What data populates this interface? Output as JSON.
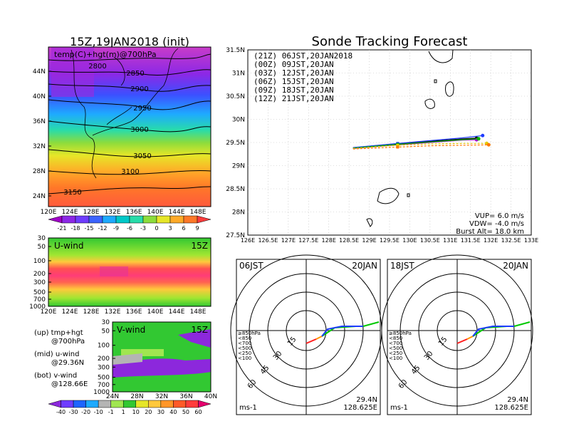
{
  "left": {
    "title": "15Z,19JAN2018 (init)",
    "map_label": "temp(C)+hgt(m)@700hPa",
    "lat_ticks": [
      "44N",
      "40N",
      "36N",
      "32N",
      "28N",
      "24N"
    ],
    "lon_ticks": [
      "120E",
      "124E",
      "128E",
      "132E",
      "136E",
      "140E",
      "144E",
      "148E"
    ],
    "contours": [
      "2800",
      "2850",
      "2900",
      "2950",
      "3000",
      "3050",
      "3100",
      "3150"
    ],
    "temp_colorbar": [
      "-21",
      "-18",
      "-15",
      "-12",
      "-9",
      "-6",
      "-3",
      "0",
      "3",
      "6",
      "9"
    ],
    "uwind": {
      "label": "U-wind",
      "time": "15Z",
      "p_ticks": [
        "30",
        "50",
        "100",
        "200",
        "300",
        "500",
        "700",
        "1000"
      ],
      "lon_ticks": [
        "120E",
        "124E",
        "128E",
        "132E",
        "136E",
        "140E",
        "144E",
        "148E"
      ]
    },
    "vwind": {
      "label": "V-wind",
      "time": "15Z",
      "p_ticks": [
        "30",
        "50",
        "100",
        "200",
        "300",
        "500",
        "700",
        "1000"
      ],
      "lat_ticks": [
        "24N",
        "28N",
        "32N",
        "36N",
        "40N"
      ]
    },
    "notes": [
      [
        "(up) tmp+hgt",
        "@700hPa"
      ],
      [
        "(mid) u-wind",
        "@29.36N"
      ],
      [
        "(bot) v-wind",
        "@128.66E"
      ]
    ],
    "wind_colorbar": [
      "-40",
      "-30",
      "-20",
      "-10",
      "-1",
      "1",
      "10",
      "20",
      "30",
      "40",
      "50",
      "60"
    ]
  },
  "right": {
    "title": "Sonde Tracking Forecast",
    "legend": [
      {
        "label": "(21Z) 06JST,20JAN2018",
        "color": "#000000"
      },
      {
        "label": "(00Z) 09JST,20JAN",
        "color": "#a000c8"
      },
      {
        "label": "(03Z) 12JST,20JAN",
        "color": "#1e3cff"
      },
      {
        "label": "(06Z) 15JST,20JAN",
        "color": "#00b400"
      },
      {
        "label": "(09Z) 18JST,20JAN",
        "color": "#e6c800"
      },
      {
        "label": "(12Z) 21JST,20JAN",
        "color": "#ff7800"
      }
    ],
    "lat_ticks": [
      "31.5N",
      "31N",
      "30.5N",
      "30N",
      "29.5N",
      "29N",
      "28.5N",
      "28N",
      "27.5N"
    ],
    "lon_ticks": [
      "126E",
      "126.5E",
      "127E",
      "127.5E",
      "128E",
      "128.5E",
      "129E",
      "129.5E",
      "130E",
      "130.5E",
      "131E",
      "131.5E",
      "132E",
      "132.5E",
      "133E"
    ],
    "info": [
      "VUP= 6.0 m/s",
      "VDW= -4.0 m/s",
      "Burst Alt= 18.0 km"
    ]
  },
  "chart_data": [
    {
      "type": "line",
      "title": "Sonde Tracking Forecast",
      "xlim": [
        126,
        133
      ],
      "ylim": [
        27.5,
        31.5
      ],
      "series": [
        {
          "name": "(21Z) 06JST,20JAN2018",
          "color": "#000000",
          "points": [
            [
              128.6,
              29.38
            ],
            [
              129.7,
              29.47
            ],
            [
              130.5,
              29.52
            ],
            [
              131.3,
              29.57
            ],
            [
              131.65,
              29.59
            ]
          ]
        },
        {
          "name": "(00Z) 09JST,20JAN",
          "color": "#a000c8",
          "points": [
            [
              128.6,
              29.37
            ],
            [
              129.7,
              29.45
            ],
            [
              130.5,
              29.5
            ],
            [
              131.3,
              29.55
            ],
            [
              131.65,
              29.56
            ]
          ]
        },
        {
          "name": "(03Z) 12JST,20JAN",
          "color": "#1e3cff",
          "points": [
            [
              128.6,
              29.39
            ],
            [
              129.7,
              29.48
            ],
            [
              130.5,
              29.54
            ],
            [
              131.3,
              29.6
            ],
            [
              131.8,
              29.65
            ]
          ]
        },
        {
          "name": "(06Z) 15JST,20JAN",
          "color": "#00b400",
          "points": [
            [
              128.6,
              29.38
            ],
            [
              129.7,
              29.46
            ],
            [
              130.5,
              29.51
            ],
            [
              131.3,
              29.56
            ],
            [
              131.7,
              29.58
            ]
          ]
        },
        {
          "name": "(09Z) 18JST,20JAN",
          "color": "#e6c800",
          "points": [
            [
              128.6,
              29.37
            ],
            [
              129.7,
              29.44
            ],
            [
              130.5,
              29.47
            ],
            [
              131.3,
              29.48
            ],
            [
              131.9,
              29.48
            ]
          ]
        },
        {
          "name": "(12Z) 21JST,20JAN",
          "color": "#ff7800",
          "points": [
            [
              128.6,
              29.36
            ],
            [
              129.7,
              29.4
            ],
            [
              130.5,
              29.43
            ],
            [
              131.3,
              29.44
            ],
            [
              131.95,
              29.45
            ]
          ]
        }
      ]
    }
  ],
  "hodo_left": {
    "left": "06JST",
    "right": "20JAN",
    "rings": [
      "15",
      "30",
      "45",
      "60"
    ],
    "unit": "ms-1",
    "lat": "29.4N",
    "lon": "128.625E",
    "levels": [
      {
        "label": "≥850hPa",
        "color": "#ff1e1e"
      },
      {
        "label": "<850",
        "color": "#ff9600"
      },
      {
        "label": "<700",
        "color": "#e6c800"
      },
      {
        "label": "<500",
        "color": "#00c800"
      },
      {
        "label": "<250",
        "color": "#00b4ff"
      },
      {
        "label": "<100",
        "color": "#1e3cff"
      }
    ]
  },
  "hodo_right": {
    "left": "18JST",
    "right": "20JAN",
    "rings": [
      "15",
      "30",
      "45",
      "60"
    ],
    "unit": "ms-1",
    "lat": "29.4N",
    "lon": "128.625E",
    "levels": [
      {
        "label": "≥850hPa",
        "color": "#ff1e1e"
      },
      {
        "label": "<850",
        "color": "#ff9600"
      },
      {
        "label": "<700",
        "color": "#e6c800"
      },
      {
        "label": "<500",
        "color": "#00c800"
      },
      {
        "label": "<250",
        "color": "#00b4ff"
      },
      {
        "label": "<100",
        "color": "#1e3cff"
      }
    ]
  }
}
